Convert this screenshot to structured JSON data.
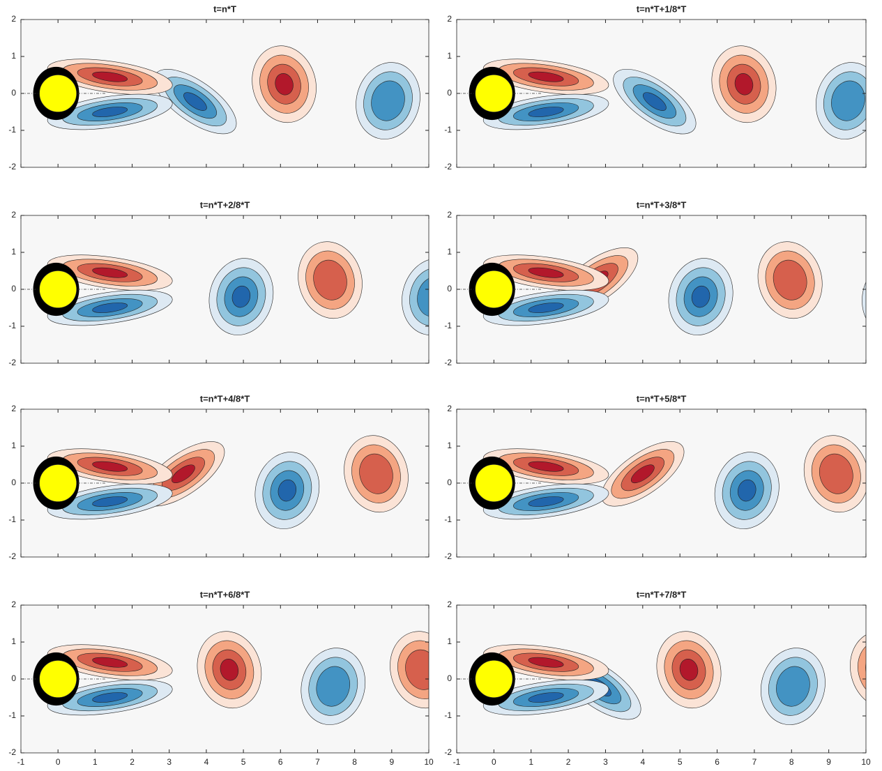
{
  "chart_data": [
    {
      "type": "contour",
      "title": "t=n*T",
      "xlim": [
        -1,
        10
      ],
      "ylim": [
        -2,
        2
      ],
      "xticks": [
        -1,
        0,
        1,
        2,
        3,
        4,
        5,
        6,
        7,
        8,
        9,
        10
      ],
      "yticks": [
        -2,
        -1,
        0,
        1,
        2
      ],
      "xtick_labels": false
    },
    {
      "type": "contour",
      "title": "t=n*T+1/8*T",
      "xlim": [
        -1,
        10
      ],
      "ylim": [
        -2,
        2
      ],
      "xticks": [
        -1,
        0,
        1,
        2,
        3,
        4,
        5,
        6,
        7,
        8,
        9,
        10
      ],
      "yticks": [
        -2,
        -1,
        0,
        1,
        2
      ],
      "xtick_labels": false
    },
    {
      "type": "contour",
      "title": "t=n*T+2/8*T",
      "xlim": [
        -1,
        10
      ],
      "ylim": [
        -2,
        2
      ],
      "xticks": [
        -1,
        0,
        1,
        2,
        3,
        4,
        5,
        6,
        7,
        8,
        9,
        10
      ],
      "yticks": [
        -2,
        -1,
        0,
        1,
        2
      ],
      "xtick_labels": false
    },
    {
      "type": "contour",
      "title": "t=n*T+3/8*T",
      "xlim": [
        -1,
        10
      ],
      "ylim": [
        -2,
        2
      ],
      "xticks": [
        -1,
        0,
        1,
        2,
        3,
        4,
        5,
        6,
        7,
        8,
        9,
        10
      ],
      "yticks": [
        -2,
        -1,
        0,
        1,
        2
      ],
      "xtick_labels": false
    },
    {
      "type": "contour",
      "title": "t=n*T+4/8*T",
      "xlim": [
        -1,
        10
      ],
      "ylim": [
        -2,
        2
      ],
      "xticks": [
        -1,
        0,
        1,
        2,
        3,
        4,
        5,
        6,
        7,
        8,
        9,
        10
      ],
      "yticks": [
        -2,
        -1,
        0,
        1,
        2
      ],
      "xtick_labels": false
    },
    {
      "type": "contour",
      "title": "t=n*T+5/8*T",
      "xlim": [
        -1,
        10
      ],
      "ylim": [
        -2,
        2
      ],
      "xticks": [
        -1,
        0,
        1,
        2,
        3,
        4,
        5,
        6,
        7,
        8,
        9,
        10
      ],
      "yticks": [
        -2,
        -1,
        0,
        1,
        2
      ],
      "xtick_labels": false
    },
    {
      "type": "contour",
      "title": "t=n*T+6/8*T",
      "xlim": [
        -1,
        10
      ],
      "ylim": [
        -2,
        2
      ],
      "xticks": [
        -1,
        0,
        1,
        2,
        3,
        4,
        5,
        6,
        7,
        8,
        9,
        10
      ],
      "yticks": [
        -2,
        -1,
        0,
        1,
        2
      ],
      "xtick_labels": true
    },
    {
      "type": "contour",
      "title": "t=n*T+7/8*T",
      "xlim": [
        -1,
        10
      ],
      "ylim": [
        -2,
        2
      ],
      "xticks": [
        -1,
        0,
        1,
        2,
        3,
        4,
        5,
        6,
        7,
        8,
        9,
        10
      ],
      "yticks": [
        -2,
        -1,
        0,
        1,
        2
      ],
      "xtick_labels": true
    }
  ]
}
